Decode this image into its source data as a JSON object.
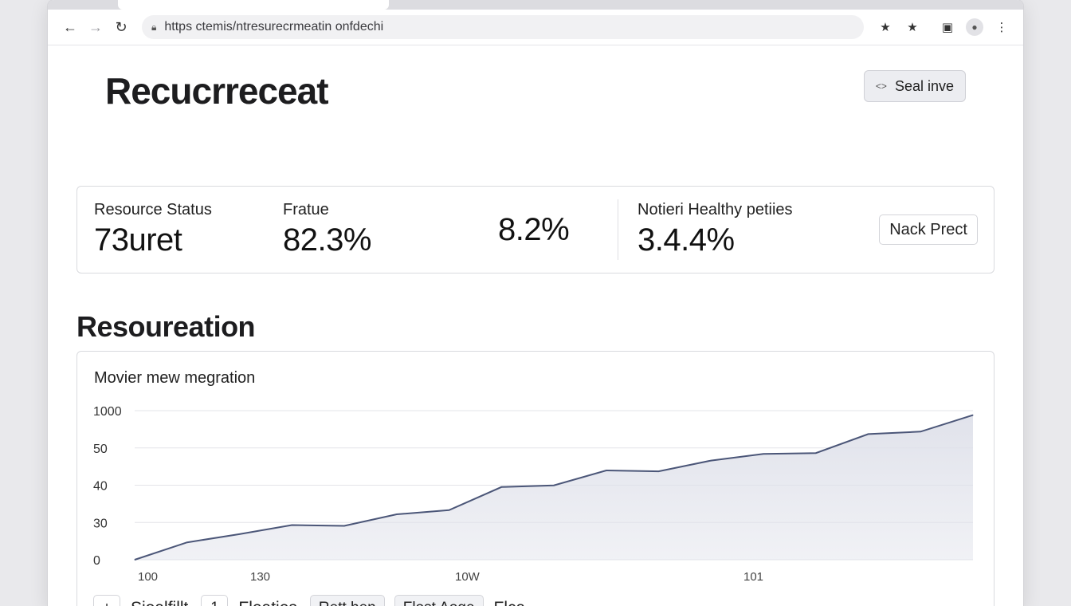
{
  "browser": {
    "url": "https ctemis/ntresurecrmeatin onfdechi",
    "icons": [
      "back-arrow-icon",
      "forward-arrow-icon",
      "reload-icon",
      "lock-icon",
      "star-icon",
      "extensions-star-icon",
      "sidebar-icon",
      "profile-icon",
      "menu-icon"
    ]
  },
  "header": {
    "title": "Recucrreceat",
    "action_label": "Seal inve"
  },
  "stats": {
    "items": [
      {
        "label": "Resource Status",
        "value": "73uret"
      },
      {
        "label": "Fratue",
        "value": "82.3%"
      },
      {
        "label": "",
        "value": "8.2%"
      },
      {
        "label": "Notieri Healthy petiies",
        "value": "3.4.4%"
      }
    ],
    "button_label": "Nack Prect"
  },
  "section": {
    "title": "Resoureation"
  },
  "chart_data": {
    "type": "area",
    "subtitle": "Movier mew megration",
    "y_ticks": [
      "1000",
      "50",
      "40",
      "30",
      "0"
    ],
    "x_ticks": [
      "100",
      "130",
      "10W",
      "101"
    ],
    "series": [
      {
        "values": [
          0,
          21,
          31,
          42,
          41,
          55,
          60,
          88,
          90,
          108,
          107,
          120,
          128,
          129,
          152,
          155,
          175
        ]
      }
    ],
    "grid": true,
    "line_color": "#4b5678",
    "fill_color": "#dfe1ea"
  },
  "controls": {
    "add_label": "+",
    "label1": "Sioalfillt",
    "count": "1",
    "label2": "Fleaties",
    "button1": "Rett hen",
    "button2": "Flost Aoge",
    "label3": "Flca"
  }
}
